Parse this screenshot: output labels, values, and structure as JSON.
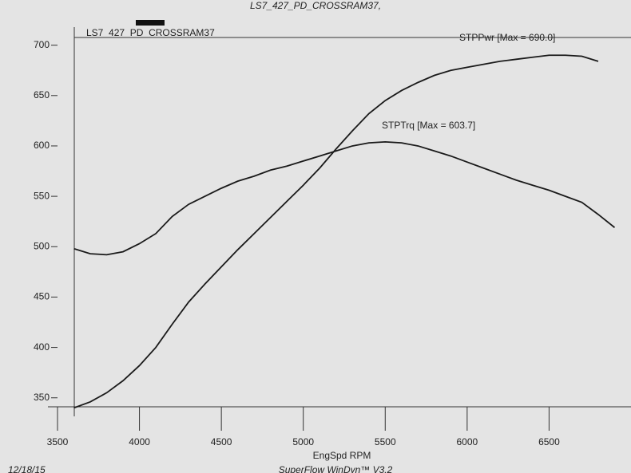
{
  "chart_data": {
    "type": "line",
    "header": "LS7_427_PD_CROSSRAM37,",
    "title": "LS7_427_PD_CROSSRAM37",
    "xlabel": "EngSpd  RPM",
    "footer_left": "12/18/15",
    "footer_center": "SuperFlow WinDyn™  V3.2",
    "x": [
      3600,
      3700,
      3800,
      3900,
      4000,
      4100,
      4200,
      4300,
      4400,
      4500,
      4600,
      4700,
      4800,
      4900,
      5000,
      5100,
      5200,
      5300,
      5400,
      5500,
      5600,
      5700,
      5800,
      5900,
      6000,
      6100,
      6200,
      6300,
      6400,
      6500,
      6600,
      6700,
      6800,
      6900
    ],
    "series": [
      {
        "name": "STPTrq [Max = 603.7]",
        "color": "#1a1a1a",
        "values": [
          498,
          493,
          492,
          495,
          503,
          513,
          530,
          542,
          550,
          558,
          565,
          570,
          576,
          580,
          585,
          590,
          595,
          600,
          603,
          604,
          603,
          600,
          595,
          590,
          584,
          578,
          572,
          566,
          561,
          556,
          550,
          544,
          532,
          519
        ]
      },
      {
        "name": "STPPwr [Max = 690.0]",
        "color": "#1a1a1a",
        "values": [
          340,
          346,
          355,
          367,
          382,
          400,
          423,
          445,
          463,
          480,
          497,
          513,
          529,
          545,
          561,
          578,
          597,
          615,
          632,
          645,
          655,
          663,
          670,
          675,
          678,
          681,
          684,
          686,
          688,
          690,
          690,
          689,
          684,
          null
        ]
      }
    ],
    "xlim": [
      3500,
      7000
    ],
    "xticks": [
      3500,
      4000,
      4500,
      5000,
      5500,
      6000,
      6500
    ],
    "ylim": [
      330,
      710
    ],
    "yticks": [
      350,
      400,
      450,
      500,
      550,
      600,
      650,
      700
    ],
    "grid": true
  }
}
